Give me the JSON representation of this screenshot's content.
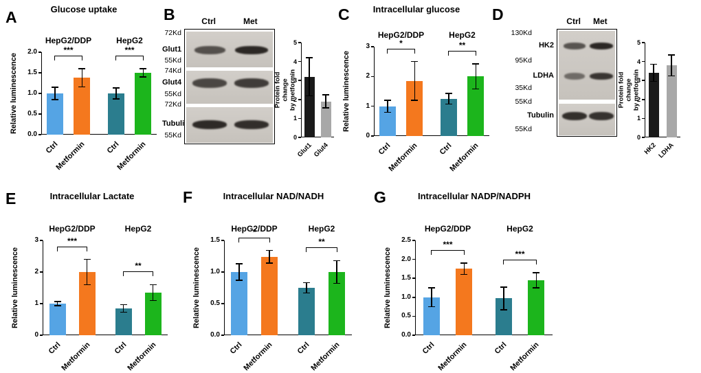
{
  "figure": {
    "panels": [
      {
        "letter": "A"
      },
      {
        "letter": "B"
      },
      {
        "letter": "C"
      },
      {
        "letter": "D"
      },
      {
        "letter": "E"
      },
      {
        "letter": "F"
      },
      {
        "letter": "G"
      }
    ]
  },
  "colors": {
    "ctrl_hepg2_ddp": "#55a4e4",
    "metformin_hepg2_ddp": "#f4781e",
    "ctrl_hepg2": "#2b7d8e",
    "metformin_hepg2": "#1cb51c",
    "fold_black": "#1a1a1a",
    "fold_gray": "#a8a8a8",
    "axis": "#000000"
  },
  "chart_data": [
    {
      "id": "A",
      "panel": "A",
      "type": "bar",
      "title": "Glucose uptake",
      "ylabel": "Relative luminescence",
      "ylim": [
        0,
        2.0
      ],
      "yticks": [
        {
          "v": 0,
          "label": "0.0"
        },
        {
          "v": 0.5,
          "label": "0.5"
        },
        {
          "v": 1.0,
          "label": "1.0"
        },
        {
          "v": 1.5,
          "label": "1.5"
        },
        {
          "v": 2.0,
          "label": "2.0"
        }
      ],
      "groups": [
        {
          "label": "HepG2/DDP",
          "bars": [
            0,
            1
          ]
        },
        {
          "label": "HepG2",
          "bars": [
            2,
            3
          ]
        }
      ],
      "categories": [
        "Ctrl",
        "Metformin",
        "Ctrl",
        "Metformin"
      ],
      "values": [
        1.0,
        1.38,
        1.0,
        1.5
      ],
      "errors": [
        0.15,
        0.22,
        0.13,
        0.1
      ],
      "bar_colors": [
        "#55a4e4",
        "#f4781e",
        "#2b7d8e",
        "#1cb51c"
      ],
      "significance": [
        {
          "pair": [
            0,
            1
          ],
          "label": "***"
        },
        {
          "pair": [
            2,
            3
          ],
          "label": "***"
        }
      ]
    },
    {
      "id": "B",
      "panel": "B",
      "type": "bar",
      "title": "",
      "ylabel": "Protein fold change\nby metformin",
      "ylim": [
        0,
        5
      ],
      "yticks": [
        {
          "v": 0,
          "label": "0"
        },
        {
          "v": 1,
          "label": "1"
        },
        {
          "v": 2,
          "label": "2"
        },
        {
          "v": 3,
          "label": "3"
        },
        {
          "v": 4,
          "label": "4"
        },
        {
          "v": 5,
          "label": "5"
        }
      ],
      "groups": [],
      "categories": [
        "Glut1",
        "Glut4"
      ],
      "values": [
        3.2,
        1.9
      ],
      "errors": [
        1.0,
        0.35
      ],
      "bar_colors": [
        "#1a1a1a",
        "#a8a8a8"
      ],
      "significance": []
    },
    {
      "id": "C",
      "panel": "C",
      "type": "bar",
      "title": "Intracellular glucose",
      "ylabel": "Relative luminescence",
      "ylim": [
        0,
        3
      ],
      "yticks": [
        {
          "v": 0,
          "label": "0"
        },
        {
          "v": 1,
          "label": "1"
        },
        {
          "v": 2,
          "label": "2"
        },
        {
          "v": 3,
          "label": "3"
        }
      ],
      "groups": [
        {
          "label": "HepG2/DDP",
          "bars": [
            0,
            1
          ]
        },
        {
          "label": "HepG2",
          "bars": [
            2,
            3
          ]
        }
      ],
      "categories": [
        "Ctrl",
        "Metformin",
        "Ctrl",
        "Metformin"
      ],
      "values": [
        1.0,
        1.85,
        1.25,
        2.0
      ],
      "errors": [
        0.2,
        0.65,
        0.18,
        0.42
      ],
      "bar_colors": [
        "#55a4e4",
        "#f4781e",
        "#2b7d8e",
        "#1cb51c"
      ],
      "significance": [
        {
          "pair": [
            0,
            1
          ],
          "label": "*"
        },
        {
          "pair": [
            2,
            3
          ],
          "label": "**"
        }
      ]
    },
    {
      "id": "D",
      "panel": "D",
      "type": "bar",
      "title": "",
      "ylabel": "Protein fold change\nby metformin",
      "ylim": [
        0,
        5
      ],
      "yticks": [
        {
          "v": 0,
          "label": "0"
        },
        {
          "v": 1,
          "label": "1"
        },
        {
          "v": 2,
          "label": "2"
        },
        {
          "v": 3,
          "label": "3"
        },
        {
          "v": 4,
          "label": "4"
        },
        {
          "v": 5,
          "label": "5"
        }
      ],
      "groups": [],
      "categories": [
        "HK2",
        "LDHA"
      ],
      "values": [
        3.4,
        3.8
      ],
      "errors": [
        0.45,
        0.55
      ],
      "bar_colors": [
        "#1a1a1a",
        "#a8a8a8"
      ],
      "significance": []
    },
    {
      "id": "E",
      "panel": "E",
      "type": "bar",
      "title": "Intracellular Lactate",
      "ylabel": "Relative luminescence",
      "ylim": [
        0,
        3
      ],
      "yticks": [
        {
          "v": 0,
          "label": "0"
        },
        {
          "v": 1,
          "label": "1"
        },
        {
          "v": 2,
          "label": "2"
        },
        {
          "v": 3,
          "label": "3"
        }
      ],
      "groups": [
        {
          "label": "HepG2/DDP",
          "bars": [
            0,
            1
          ]
        },
        {
          "label": "HepG2",
          "bars": [
            2,
            3
          ]
        }
      ],
      "categories": [
        "Ctrl",
        "Metformin",
        "Ctrl",
        "Metformin"
      ],
      "values": [
        1.0,
        2.0,
        0.85,
        1.35
      ],
      "errors": [
        0.07,
        0.4,
        0.12,
        0.25
      ],
      "bar_colors": [
        "#55a4e4",
        "#f4781e",
        "#2b7d8e",
        "#1cb51c"
      ],
      "significance": [
        {
          "pair": [
            0,
            1
          ],
          "label": "***"
        },
        {
          "pair": [
            2,
            3
          ],
          "label": "**"
        }
      ]
    },
    {
      "id": "F",
      "panel": "F",
      "type": "bar",
      "title": "Intracellular NAD/NADH",
      "ylabel": "Relative luminescence",
      "ylim": [
        0,
        1.5
      ],
      "yticks": [
        {
          "v": 0,
          "label": "0.0"
        },
        {
          "v": 0.5,
          "label": "0.5"
        },
        {
          "v": 1.0,
          "label": "1.0"
        },
        {
          "v": 1.5,
          "label": "1.5"
        }
      ],
      "groups": [
        {
          "label": "HepG2/DDP",
          "bars": [
            0,
            1
          ]
        },
        {
          "label": "HepG2",
          "bars": [
            2,
            3
          ]
        }
      ],
      "categories": [
        "Ctrl",
        "Metformin",
        "Ctrl",
        "Metformin"
      ],
      "values": [
        1.0,
        1.24,
        0.75,
        1.0
      ],
      "errors": [
        0.13,
        0.1,
        0.08,
        0.18
      ],
      "bar_colors": [
        "#55a4e4",
        "#f4781e",
        "#2b7d8e",
        "#1cb51c"
      ],
      "significance": [
        {
          "pair": [
            0,
            1
          ],
          "label": "*"
        },
        {
          "pair": [
            2,
            3
          ],
          "label": "**"
        }
      ]
    },
    {
      "id": "G",
      "panel": "G",
      "type": "bar",
      "title": "Intracellular NADP/NADPH",
      "ylabel": "Relative luminescence",
      "ylim": [
        0,
        2.5
      ],
      "yticks": [
        {
          "v": 0,
          "label": "0.0"
        },
        {
          "v": 0.5,
          "label": "0.5"
        },
        {
          "v": 1.0,
          "label": "1.0"
        },
        {
          "v": 1.5,
          "label": "1.5"
        },
        {
          "v": 2.0,
          "label": "2.0"
        },
        {
          "v": 2.5,
          "label": "2.5"
        }
      ],
      "groups": [
        {
          "label": "HepG2/DDP",
          "bars": [
            0,
            1
          ]
        },
        {
          "label": "HepG2",
          "bars": [
            2,
            3
          ]
        }
      ],
      "categories": [
        "Ctrl",
        "Metformin",
        "Ctrl",
        "Metformin"
      ],
      "values": [
        1.0,
        1.75,
        0.97,
        1.45
      ],
      "errors": [
        0.25,
        0.15,
        0.3,
        0.2
      ],
      "bar_colors": [
        "#55a4e4",
        "#f4781e",
        "#2b7d8e",
        "#1cb51c"
      ],
      "significance": [
        {
          "pair": [
            0,
            1
          ],
          "label": "***"
        },
        {
          "pair": [
            2,
            3
          ],
          "label": "***"
        }
      ]
    }
  ],
  "blots": [
    {
      "id": "B",
      "lanes": [
        "Ctrl",
        "Met"
      ],
      "labels": [
        {
          "text": "72Kd",
          "bold": false
        },
        {
          "text": "Glut1",
          "bold": true
        },
        {
          "text": "55Kd",
          "bold": false
        },
        {
          "text": "74Kd",
          "bold": false
        },
        {
          "text": "Glut4",
          "bold": true
        },
        {
          "text": "55Kd",
          "bold": false
        },
        {
          "text": "72Kd",
          "bold": false
        },
        {
          "text": "Tubulin",
          "bold": true
        },
        {
          "text": "55Kd",
          "bold": false
        }
      ],
      "rows": [
        {
          "protein": "Glut1",
          "intensities": [
            0.72,
            0.96
          ]
        },
        {
          "protein": "Glut4",
          "intensities": [
            0.78,
            0.84
          ]
        },
        {
          "protein": "Tubulin",
          "intensities": [
            0.95,
            0.92
          ]
        }
      ]
    },
    {
      "id": "D",
      "lanes": [
        "Ctrl",
        "Met"
      ],
      "labels": [
        {
          "text": "130Kd",
          "bold": false
        },
        {
          "text": "HK2",
          "bold": true
        },
        {
          "text": "95Kd",
          "bold": false
        },
        {
          "text": "LDHA",
          "bold": true
        },
        {
          "text": "35Kd",
          "bold": false
        },
        {
          "text": "55Kd",
          "bold": false
        },
        {
          "text": "Tubulin",
          "bold": true
        },
        {
          "text": "55Kd",
          "bold": false
        }
      ],
      "rows": [
        {
          "protein": "HK2",
          "intensities": [
            0.7,
            0.96
          ]
        },
        {
          "protein": "LDHA",
          "intensities": [
            0.55,
            0.88
          ]
        },
        {
          "protein": "Tubulin",
          "intensities": [
            0.92,
            0.9
          ]
        }
      ]
    }
  ]
}
